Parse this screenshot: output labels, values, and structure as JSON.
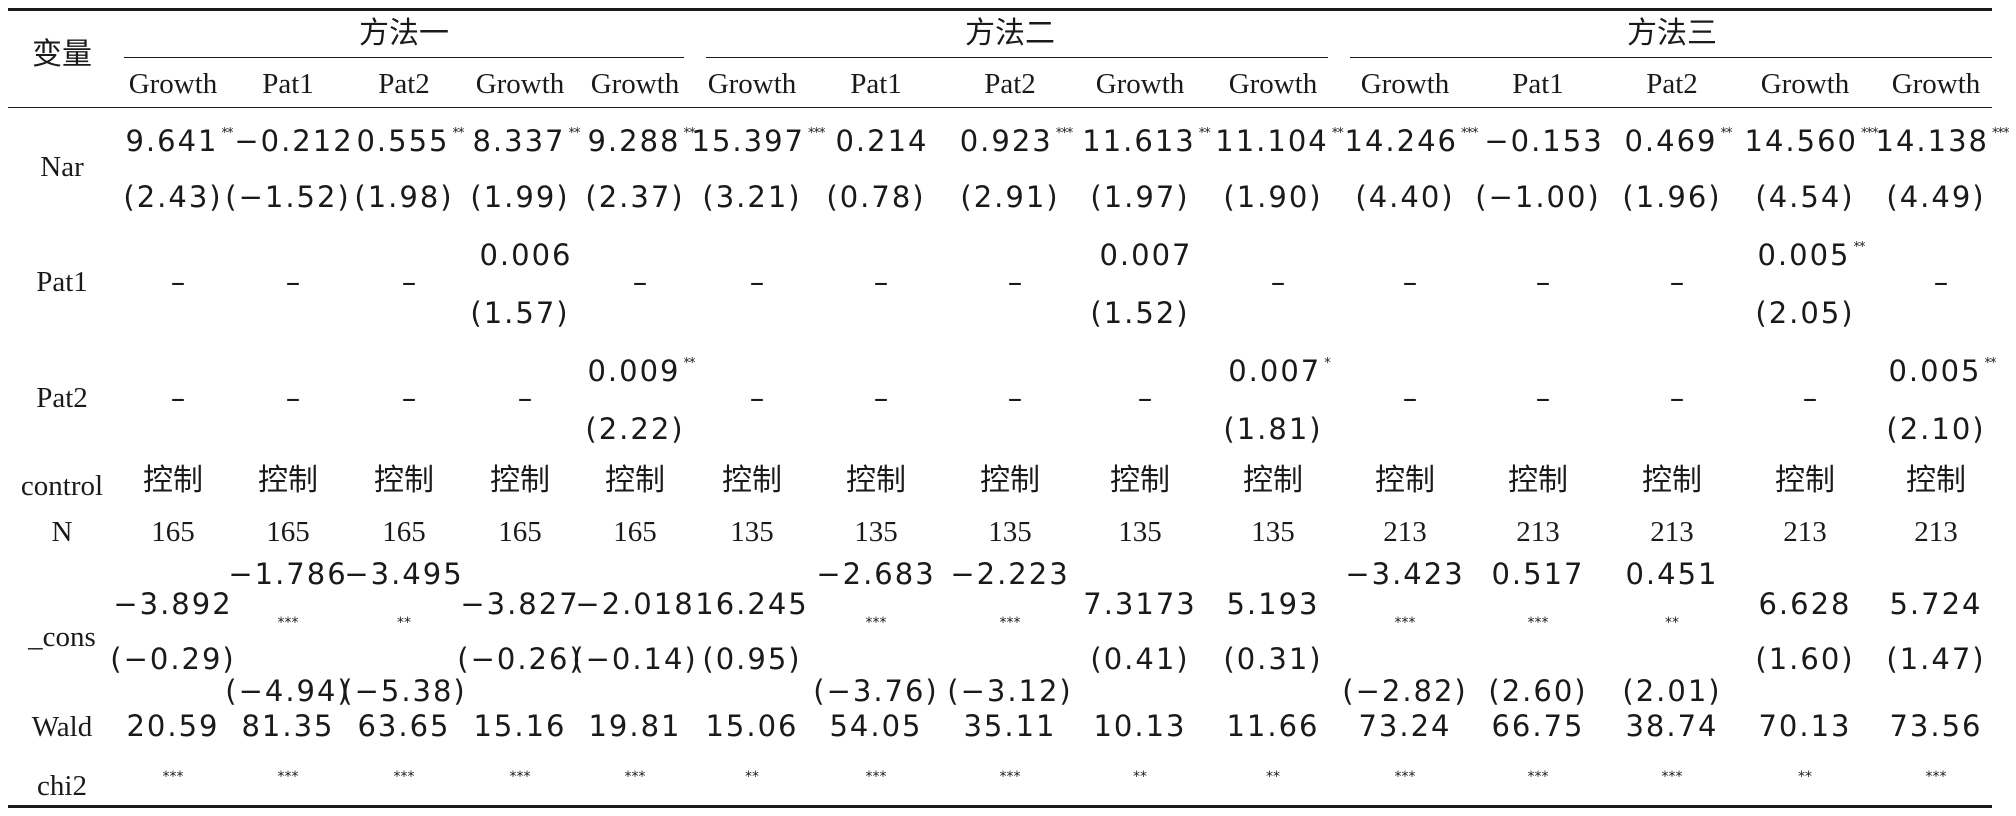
{
  "header": {
    "var_label": "变量",
    "groups": [
      "方法一",
      "方法二",
      "方法三"
    ],
    "columns": [
      "Growth",
      "Pat1",
      "Pat2",
      "Growth",
      "Growth",
      "Growth",
      "Pat1",
      "Pat2",
      "Growth",
      "Growth",
      "Growth",
      "Pat1",
      "Pat2",
      "Growth",
      "Growth"
    ]
  },
  "rows": {
    "nar": {
      "label": "Nar",
      "coef": [
        {
          "v": "9.641",
          "s": "**"
        },
        {
          "v": "−0.212",
          "s": ""
        },
        {
          "v": "0.555",
          "s": "**"
        },
        {
          "v": "8.337",
          "s": "**"
        },
        {
          "v": "9.288",
          "s": "**"
        },
        {
          "v": "15.397",
          "s": "***"
        },
        {
          "v": "0.214",
          "s": ""
        },
        {
          "v": "0.923",
          "s": "***"
        },
        {
          "v": "11.613",
          "s": "**"
        },
        {
          "v": "11.104",
          "s": "**"
        },
        {
          "v": "14.246",
          "s": "***"
        },
        {
          "v": "−0.153",
          "s": ""
        },
        {
          "v": "0.469",
          "s": "**"
        },
        {
          "v": "14.560",
          "s": "***"
        },
        {
          "v": "14.138",
          "s": "***"
        }
      ],
      "t": [
        "(2.43)",
        "(−1.52)",
        "(1.98)",
        "(1.99)",
        "(2.37)",
        "(3.21)",
        "(0.78)",
        "(2.91)",
        "(1.97)",
        "(1.90)",
        "(4.40)",
        "(−1.00)",
        "(1.96)",
        "(4.54)",
        "(4.49)"
      ]
    },
    "pat1": {
      "label": "Pat1",
      "coef": [
        {
          "v": "–",
          "s": ""
        },
        {
          "v": "–",
          "s": ""
        },
        {
          "v": "–",
          "s": ""
        },
        {
          "v": "0.006",
          "s": ""
        },
        {
          "v": "–",
          "s": ""
        },
        {
          "v": "–",
          "s": ""
        },
        {
          "v": "–",
          "s": ""
        },
        {
          "v": "–",
          "s": ""
        },
        {
          "v": "0.007",
          "s": ""
        },
        {
          "v": "–",
          "s": ""
        },
        {
          "v": "–",
          "s": ""
        },
        {
          "v": "–",
          "s": ""
        },
        {
          "v": "–",
          "s": ""
        },
        {
          "v": "0.005",
          "s": "**"
        },
        {
          "v": "–",
          "s": ""
        }
      ],
      "t": [
        "",
        "",
        "",
        "(1.57)",
        "",
        "",
        "",
        "",
        "(1.52)",
        "",
        "",
        "",
        "",
        "(2.05)",
        ""
      ]
    },
    "pat2": {
      "label": "Pat2",
      "coef": [
        {
          "v": "–",
          "s": ""
        },
        {
          "v": "–",
          "s": ""
        },
        {
          "v": "–",
          "s": ""
        },
        {
          "v": "–",
          "s": ""
        },
        {
          "v": "0.009",
          "s": "**"
        },
        {
          "v": "–",
          "s": ""
        },
        {
          "v": "–",
          "s": ""
        },
        {
          "v": "–",
          "s": ""
        },
        {
          "v": "–",
          "s": ""
        },
        {
          "v": "0.007",
          "s": "*"
        },
        {
          "v": "–",
          "s": ""
        },
        {
          "v": "–",
          "s": ""
        },
        {
          "v": "–",
          "s": ""
        },
        {
          "v": "–",
          "s": ""
        },
        {
          "v": "0.005",
          "s": "**"
        }
      ],
      "t": [
        "",
        "",
        "",
        "",
        "(2.22)",
        "",
        "",
        "",
        "",
        "(1.81)",
        "",
        "",
        "",
        "",
        "(2.10)"
      ]
    },
    "control": {
      "label": "control",
      "values": [
        "控制",
        "控制",
        "控制",
        "控制",
        "控制",
        "控制",
        "控制",
        "控制",
        "控制",
        "控制",
        "控制",
        "控制",
        "控制",
        "控制",
        "控制"
      ]
    },
    "n": {
      "label": "N",
      "values": [
        "165",
        "165",
        "165",
        "165",
        "165",
        "135",
        "135",
        "135",
        "135",
        "135",
        "213",
        "213",
        "213",
        "213",
        "213"
      ]
    },
    "cons": {
      "label": "_cons",
      "coef": [
        {
          "v": "−3.892",
          "s": ""
        },
        {
          "v": "−1.786",
          "s": "***"
        },
        {
          "v": "−3.495",
          "s": "**"
        },
        {
          "v": "−3.827",
          "s": ""
        },
        {
          "v": "−2.018",
          "s": ""
        },
        {
          "v": "16.245",
          "s": ""
        },
        {
          "v": "−2.683",
          "s": "***"
        },
        {
          "v": "−2.223",
          "s": "***"
        },
        {
          "v": "7.3173",
          "s": ""
        },
        {
          "v": "5.193",
          "s": ""
        },
        {
          "v": "−3.423",
          "s": "***"
        },
        {
          "v": "0.517",
          "s": "***"
        },
        {
          "v": "0.451",
          "s": "**"
        },
        {
          "v": "6.628",
          "s": ""
        },
        {
          "v": "5.724",
          "s": ""
        }
      ],
      "t": [
        "(−0.29)",
        "(−4.94)",
        "(−5.38)",
        "(−0.26)",
        "(−0.14)",
        "(0.95)",
        "(−3.76)",
        "(−3.12)",
        "(0.41)",
        "(0.31)",
        "(−2.82)",
        "(2.60)",
        "(2.01)",
        "(1.60)",
        "(1.47)"
      ]
    },
    "wald": {
      "label_1": "Wald",
      "label_2": "chi2",
      "values": [
        "20.59",
        "81.35",
        "63.65",
        "15.16",
        "19.81",
        "15.06",
        "54.05",
        "35.11",
        "10.13",
        "11.66",
        "73.24",
        "66.75",
        "38.74",
        "70.13",
        "73.56"
      ],
      "stars": [
        "***",
        "***",
        "***",
        "***",
        "***",
        "**",
        "***",
        "***",
        "**",
        "**",
        "***",
        "***",
        "***",
        "**",
        "***"
      ]
    }
  }
}
